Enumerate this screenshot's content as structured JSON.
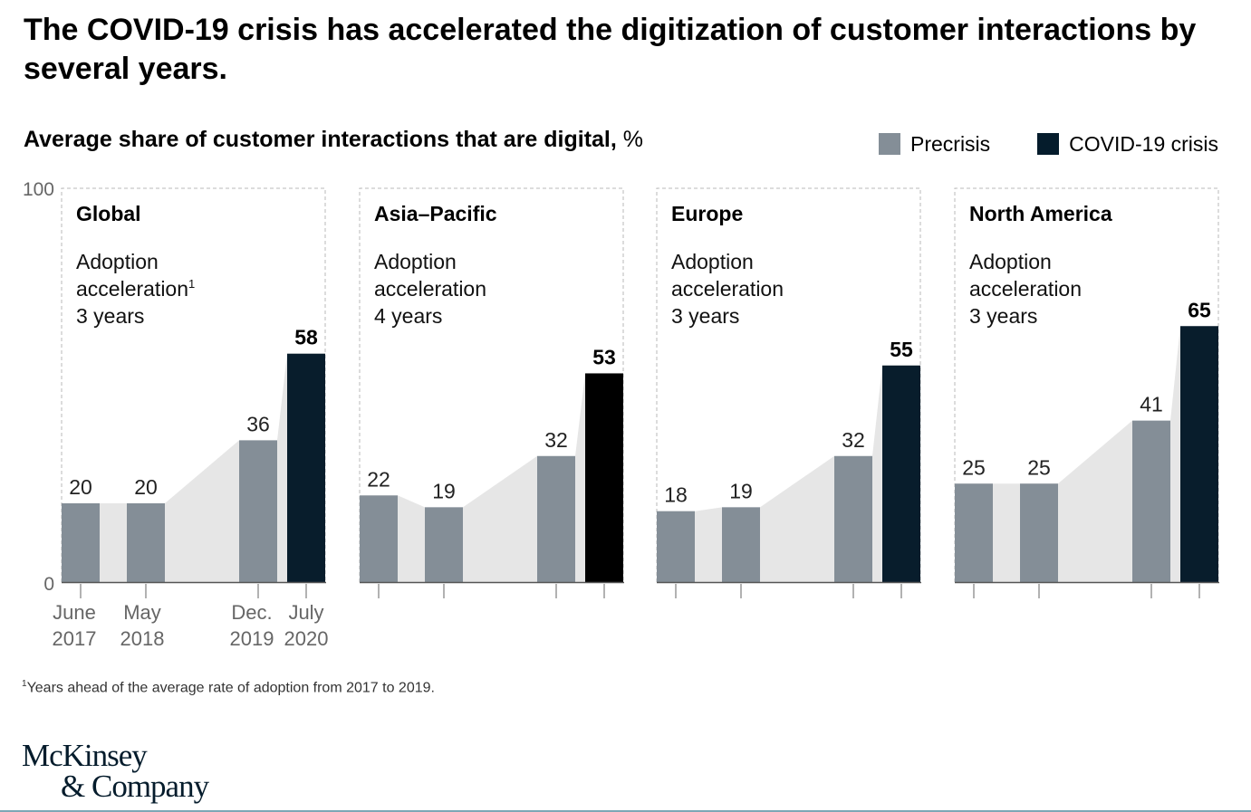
{
  "title": "The COVID-19 crisis has accelerated the digitization of customer interactions by several years.",
  "chart_data": {
    "type": "bar",
    "title": "Average share of customer interactions that are digital,",
    "unit": "%",
    "ylim": [
      0,
      100
    ],
    "y_ticks": [
      "0",
      "100"
    ],
    "categories": [
      {
        "line1": "June",
        "line2": "2017"
      },
      {
        "line1": "May",
        "line2": "2018"
      },
      {
        "line1": "Dec.",
        "line2": "2019"
      },
      {
        "line1": "July",
        "line2": "2020"
      }
    ],
    "legend": [
      {
        "name": "Precrisis",
        "color": "#848e97"
      },
      {
        "name": "COVID-19 crisis",
        "color": "#051c2c"
      }
    ],
    "panels": [
      {
        "region": "Global",
        "acceleration_label_1": "Adoption",
        "acceleration_label_2": "acceleration",
        "acceleration_note": "1",
        "acceleration_value": "3 years",
        "values": [
          20,
          20,
          36,
          58
        ],
        "crisis_color": "#081d2c"
      },
      {
        "region": "Asia–Pacific",
        "acceleration_label_1": "Adoption",
        "acceleration_label_2": "acceleration",
        "acceleration_note": "",
        "acceleration_value": "4 years",
        "values": [
          22,
          19,
          32,
          53
        ],
        "crisis_color": "#000000"
      },
      {
        "region": "Europe",
        "acceleration_label_1": "Adoption",
        "acceleration_label_2": "acceleration",
        "acceleration_note": "",
        "acceleration_value": "3 years",
        "values": [
          18,
          19,
          32,
          55
        ],
        "crisis_color": "#081d2c"
      },
      {
        "region": "North America",
        "acceleration_label_1": "Adoption",
        "acceleration_label_2": "acceleration",
        "acceleration_note": "",
        "acceleration_value": "3 years",
        "values": [
          25,
          25,
          41,
          65
        ],
        "crisis_color": "#081d2c"
      }
    ],
    "colors": {
      "precrisis": "#848e97",
      "area": "#e6e6e6",
      "frame": "#b9b9b9",
      "axis": "#555555"
    }
  },
  "footnote": {
    "mark": "1",
    "text": "Years ahead of the average rate of adoption from 2017 to 2019."
  },
  "logo": {
    "line1": "McKinsey",
    "line2": "& Company"
  }
}
